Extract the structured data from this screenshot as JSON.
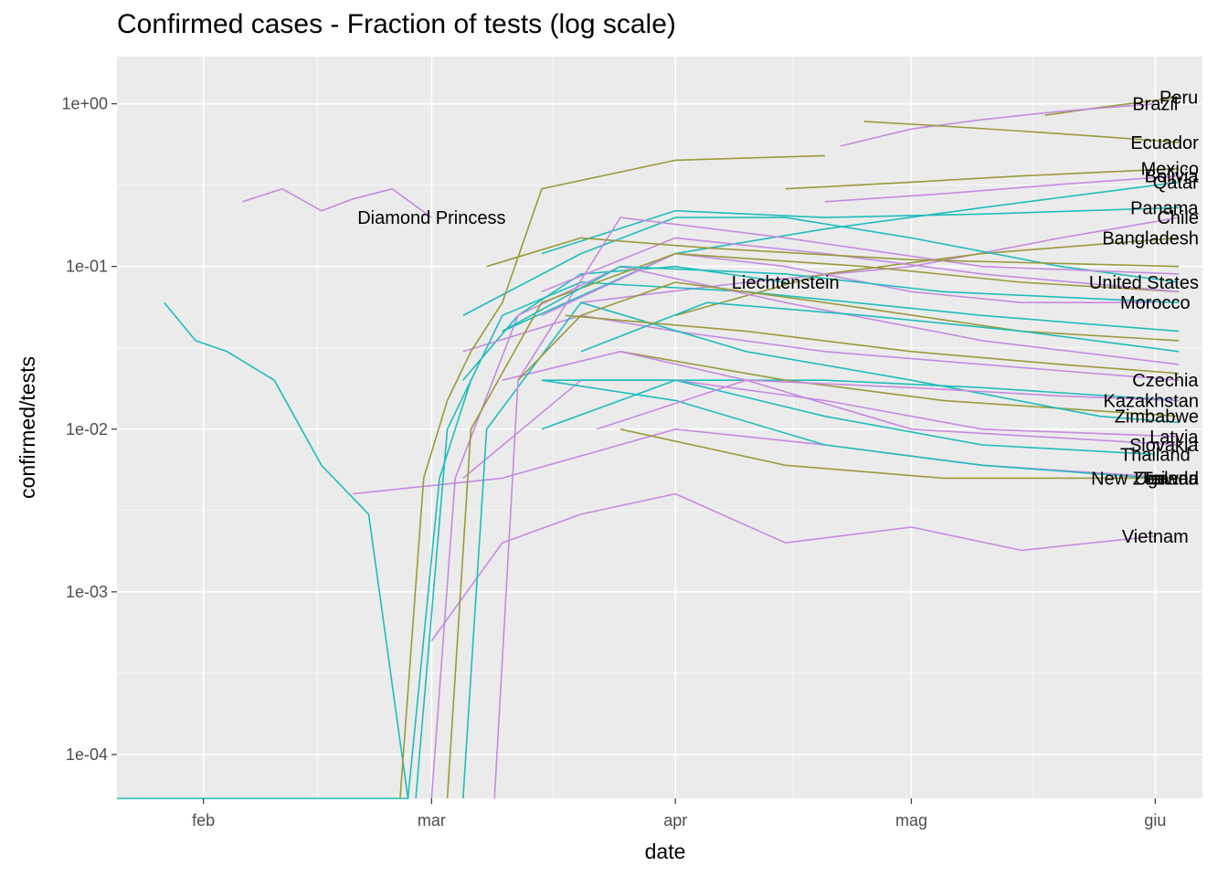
{
  "chart_data": {
    "type": "line",
    "title": "Confirmed cases - Fraction of tests (log scale)",
    "xlabel": "date",
    "ylabel": "confirmed/tests",
    "y_scale": "log10",
    "xlim": [
      "2020-01-21",
      "2020-06-07"
    ],
    "ylim_log10": [
      -4.27,
      0.29
    ],
    "x_ticks": [
      {
        "date": "2020-02-01",
        "label": "feb"
      },
      {
        "date": "2020-03-01",
        "label": "mar"
      },
      {
        "date": "2020-04-01",
        "label": "apr"
      },
      {
        "date": "2020-05-01",
        "label": "mag"
      },
      {
        "date": "2020-06-01",
        "label": "giu"
      }
    ],
    "y_ticks": [
      {
        "value": 1,
        "label": "1e+00"
      },
      {
        "value": 0.1,
        "label": "1e-01"
      },
      {
        "value": 0.01,
        "label": "1e-02"
      },
      {
        "value": 0.001,
        "label": "1e-03"
      },
      {
        "value": 0.0001,
        "label": "1e-04"
      }
    ],
    "grid": true,
    "legend": "none",
    "colors": {
      "teal": "#1fbcbc",
      "olive": "#9a9a3c",
      "violet": "#c48be0",
      "panel": "#ebebeb",
      "grid": "#ffffff"
    },
    "series": [
      {
        "name": "Peru",
        "color": "olive",
        "x": [
          "2020-05-18",
          "2020-05-25",
          "2020-06-01",
          "2020-06-04"
        ],
        "y": [
          0.85,
          0.95,
          1.05,
          1.1
        ]
      },
      {
        "name": "Brazil",
        "color": "violet",
        "x": [
          "2020-04-22",
          "2020-05-01",
          "2020-05-10",
          "2020-05-20",
          "2020-06-01"
        ],
        "y": [
          0.55,
          0.7,
          0.8,
          0.9,
          1.0
        ]
      },
      {
        "name": "Ecuador",
        "color": "olive",
        "x": [
          "2020-04-25",
          "2020-05-05",
          "2020-05-15",
          "2020-05-25",
          "2020-06-04"
        ],
        "y": [
          0.78,
          0.73,
          0.68,
          0.63,
          0.58
        ]
      },
      {
        "name": "Mexico",
        "color": "olive",
        "x": [
          "2020-04-15",
          "2020-05-01",
          "2020-05-15",
          "2020-06-04"
        ],
        "y": [
          0.3,
          0.33,
          0.36,
          0.4
        ]
      },
      {
        "name": "Bolivia",
        "color": "violet",
        "x": [
          "2020-04-20",
          "2020-05-05",
          "2020-05-20",
          "2020-06-04"
        ],
        "y": [
          0.25,
          0.28,
          0.32,
          0.36
        ]
      },
      {
        "name": "Qatar",
        "color": "teal",
        "x": [
          "2020-03-10",
          "2020-04-01",
          "2020-04-20",
          "2020-05-10",
          "2020-06-04"
        ],
        "y": [
          0.04,
          0.12,
          0.17,
          0.23,
          0.33
        ]
      },
      {
        "name": "Panama",
        "color": "teal",
        "x": [
          "2020-03-15",
          "2020-04-01",
          "2020-04-20",
          "2020-05-10",
          "2020-06-04"
        ],
        "y": [
          0.12,
          0.22,
          0.2,
          0.21,
          0.23
        ]
      },
      {
        "name": "Chile",
        "color": "violet",
        "x": [
          "2020-03-20",
          "2020-04-10",
          "2020-05-01",
          "2020-05-20",
          "2020-06-04"
        ],
        "y": [
          0.06,
          0.08,
          0.1,
          0.15,
          0.2
        ]
      },
      {
        "name": "Bangladesh",
        "color": "olive",
        "x": [
          "2020-04-01",
          "2020-04-20",
          "2020-05-10",
          "2020-06-04"
        ],
        "y": [
          0.05,
          0.09,
          0.12,
          0.15
        ]
      },
      {
        "name": "Diamond Princess",
        "color": "violet",
        "x": [
          "2020-02-06",
          "2020-02-11",
          "2020-02-16",
          "2020-02-20",
          "2020-02-25",
          "2020-03-01"
        ],
        "y": [
          0.25,
          0.3,
          0.22,
          0.26,
          0.3,
          0.2
        ]
      },
      {
        "name": "Liechtenstein",
        "color": "teal",
        "x": [
          "2020-03-05",
          "2020-03-12",
          "2020-03-20",
          "2020-04-01",
          "2020-04-15"
        ],
        "y": [
          0.02,
          0.05,
          0.09,
          0.1,
          0.08
        ]
      },
      {
        "name": "Morocco",
        "color": "violet",
        "x": [
          "2020-03-15",
          "2020-04-01",
          "2020-04-15",
          "2020-05-01",
          "2020-05-15",
          "2020-06-01"
        ],
        "y": [
          0.05,
          0.12,
          0.1,
          0.07,
          0.06,
          0.06
        ]
      },
      {
        "name": "United States",
        "color": "teal",
        "x": [
          "2020-03-05",
          "2020-03-20",
          "2020-04-01",
          "2020-04-15",
          "2020-05-01",
          "2020-05-20",
          "2020-06-04"
        ],
        "y": [
          0.05,
          0.12,
          0.2,
          0.2,
          0.15,
          0.1,
          0.08
        ]
      },
      {
        "name": "Czechia",
        "color": "violet",
        "x": [
          "2020-03-05",
          "2020-03-20",
          "2020-04-01",
          "2020-04-20",
          "2020-05-10",
          "2020-06-04"
        ],
        "y": [
          0.03,
          0.05,
          0.04,
          0.03,
          0.025,
          0.02
        ]
      },
      {
        "name": "Kazakhstan",
        "color": "teal",
        "x": [
          "2020-03-15",
          "2020-04-01",
          "2020-04-20",
          "2020-05-10",
          "2020-06-04"
        ],
        "y": [
          0.01,
          0.02,
          0.02,
          0.018,
          0.015
        ]
      },
      {
        "name": "Zimbabwe",
        "color": "olive",
        "x": [
          "2020-03-25",
          "2020-04-15",
          "2020-05-05",
          "2020-06-04"
        ],
        "y": [
          0.03,
          0.02,
          0.015,
          0.012
        ]
      },
      {
        "name": "Latvia",
        "color": "violet",
        "x": [
          "2020-03-05",
          "2020-03-20",
          "2020-04-01",
          "2020-04-20",
          "2020-05-10",
          "2020-06-04"
        ],
        "y": [
          0.005,
          0.02,
          0.02,
          0.015,
          0.01,
          0.009
        ]
      },
      {
        "name": "Slovakia",
        "color": "violet",
        "x": [
          "2020-03-10",
          "2020-03-25",
          "2020-04-10",
          "2020-05-01",
          "2020-06-04"
        ],
        "y": [
          0.02,
          0.03,
          0.02,
          0.01,
          0.008
        ]
      },
      {
        "name": "Thailand",
        "color": "teal",
        "x": [
          "2020-03-15",
          "2020-04-01",
          "2020-04-20",
          "2020-05-10",
          "2020-06-01"
        ],
        "y": [
          0.02,
          0.02,
          0.012,
          0.008,
          0.007
        ]
      },
      {
        "name": "Taiwan",
        "color": "violet",
        "x": [
          "2020-02-20",
          "2020-03-10",
          "2020-04-01",
          "2020-04-20",
          "2020-05-10",
          "2020-06-04"
        ],
        "y": [
          0.004,
          0.005,
          0.01,
          0.008,
          0.006,
          0.005
        ]
      },
      {
        "name": "New Zealand",
        "color": "teal",
        "x": [
          "2020-03-15",
          "2020-04-01",
          "2020-04-20",
          "2020-05-10",
          "2020-06-01"
        ],
        "y": [
          0.02,
          0.015,
          0.008,
          0.006,
          0.005
        ]
      },
      {
        "name": "Uganda",
        "color": "olive",
        "x": [
          "2020-03-25",
          "2020-04-15",
          "2020-05-05",
          "2020-06-04"
        ],
        "y": [
          0.01,
          0.006,
          0.005,
          0.005
        ]
      },
      {
        "name": "Vietnam",
        "color": "violet",
        "x": [
          "2020-03-01",
          "2020-03-10",
          "2020-03-20",
          "2020-04-01",
          "2020-04-15",
          "2020-05-01",
          "2020-05-15",
          "2020-06-01"
        ],
        "y": [
          0.0005,
          0.002,
          0.003,
          0.004,
          0.002,
          0.0025,
          0.0018,
          0.0022
        ]
      },
      {
        "name": "",
        "color": "teal",
        "x": [
          "2020-01-27",
          "2020-01-31",
          "2020-02-04",
          "2020-02-10",
          "2020-02-16",
          "2020-02-22",
          "2020-02-27"
        ],
        "y": [
          0.06,
          0.035,
          0.03,
          0.02,
          0.006,
          0.003,
          5e-05
        ]
      },
      {
        "name": "",
        "color": "teal",
        "x": [
          "2020-01-21",
          "2020-02-10",
          "2020-02-27",
          "2020-03-02",
          "2020-03-06"
        ],
        "y": [
          5e-05,
          5e-05,
          5e-05,
          0.005,
          0.02
        ]
      },
      {
        "name": "",
        "color": "olive",
        "x": [
          "2020-02-26",
          "2020-02-29",
          "2020-03-03",
          "2020-03-06",
          "2020-03-10",
          "2020-03-15",
          "2020-04-01",
          "2020-04-20"
        ],
        "y": [
          5e-05,
          0.005,
          0.015,
          0.03,
          0.06,
          0.3,
          0.45,
          0.48
        ]
      },
      {
        "name": "",
        "color": "teal",
        "x": [
          "2020-02-28",
          "2020-03-03",
          "2020-03-10",
          "2020-03-20",
          "2020-04-10",
          "2020-05-10",
          "2020-06-04"
        ],
        "y": [
          5e-05,
          0.01,
          0.05,
          0.08,
          0.07,
          0.05,
          0.04
        ]
      },
      {
        "name": "",
        "color": "violet",
        "x": [
          "2020-03-01",
          "2020-03-04",
          "2020-03-12",
          "2020-03-25",
          "2020-04-15",
          "2020-05-10",
          "2020-06-04"
        ],
        "y": [
          5e-05,
          0.005,
          0.05,
          0.1,
          0.06,
          0.035,
          0.025
        ]
      },
      {
        "name": "",
        "color": "olive",
        "x": [
          "2020-03-03",
          "2020-03-06",
          "2020-03-15",
          "2020-04-01",
          "2020-04-25",
          "2020-05-15",
          "2020-06-04"
        ],
        "y": [
          5e-05,
          0.01,
          0.06,
          0.12,
          0.1,
          0.08,
          0.07
        ]
      },
      {
        "name": "",
        "color": "teal",
        "x": [
          "2020-03-05",
          "2020-03-08",
          "2020-03-20",
          "2020-04-10",
          "2020-05-01",
          "2020-05-25",
          "2020-06-04"
        ],
        "y": [
          5e-05,
          0.01,
          0.06,
          0.03,
          0.02,
          0.012,
          0.011
        ]
      },
      {
        "name": "",
        "color": "violet",
        "x": [
          "2020-03-09",
          "2020-03-12",
          "2020-03-25",
          "2020-04-15",
          "2020-05-10",
          "2020-06-04"
        ],
        "y": [
          5e-05,
          0.02,
          0.2,
          0.15,
          0.1,
          0.09
        ]
      },
      {
        "name": "",
        "color": "olive",
        "x": [
          "2020-03-12",
          "2020-03-20",
          "2020-04-01",
          "2020-04-20",
          "2020-05-15",
          "2020-06-04"
        ],
        "y": [
          0.02,
          0.05,
          0.08,
          0.06,
          0.04,
          0.035
        ]
      },
      {
        "name": "",
        "color": "teal",
        "x": [
          "2020-03-20",
          "2020-04-05",
          "2020-04-25",
          "2020-05-15",
          "2020-06-04"
        ],
        "y": [
          0.03,
          0.06,
          0.05,
          0.04,
          0.03
        ]
      },
      {
        "name": "",
        "color": "violet",
        "x": [
          "2020-03-15",
          "2020-04-01",
          "2020-04-20",
          "2020-05-10",
          "2020-06-04"
        ],
        "y": [
          0.07,
          0.15,
          0.12,
          0.09,
          0.07
        ]
      },
      {
        "name": "",
        "color": "olive",
        "x": [
          "2020-03-18",
          "2020-04-10",
          "2020-05-01",
          "2020-05-20",
          "2020-06-04"
        ],
        "y": [
          0.05,
          0.04,
          0.03,
          0.025,
          0.022
        ]
      },
      {
        "name": "",
        "color": "teal",
        "x": [
          "2020-03-10",
          "2020-03-25",
          "2020-04-15",
          "2020-05-05",
          "2020-06-04"
        ],
        "y": [
          0.04,
          0.1,
          0.09,
          0.07,
          0.06
        ]
      },
      {
        "name": "",
        "color": "violet",
        "x": [
          "2020-03-22",
          "2020-04-10",
          "2020-05-01",
          "2020-05-20",
          "2020-06-04"
        ],
        "y": [
          0.01,
          0.02,
          0.018,
          0.016,
          0.015
        ]
      },
      {
        "name": "",
        "color": "olive",
        "x": [
          "2020-03-08",
          "2020-03-20",
          "2020-04-05",
          "2020-05-01",
          "2020-06-04"
        ],
        "y": [
          0.1,
          0.15,
          0.13,
          0.11,
          0.1
        ]
      }
    ]
  }
}
